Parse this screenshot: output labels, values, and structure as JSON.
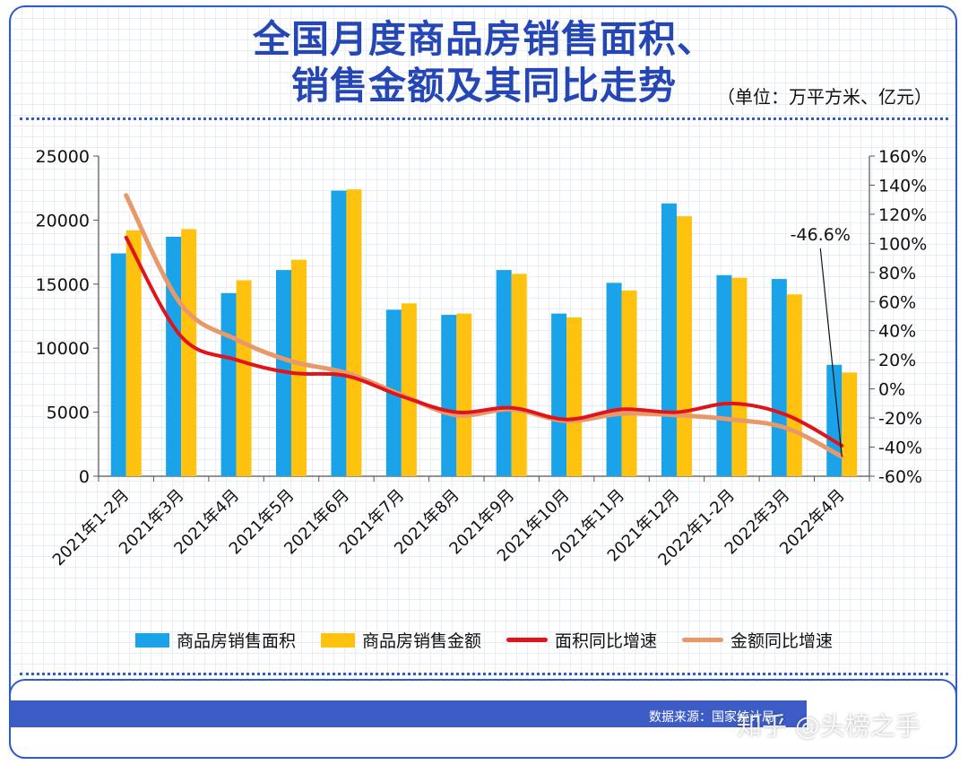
{
  "header": {
    "title_line1": "全国月度商品房销售面积、",
    "title_line2": "销售金额及其同比走势",
    "unit": "（单位：万平方米、亿元）"
  },
  "footer": {
    "source": "数据来源：国家统计局",
    "watermark": "知乎 @头榜之手"
  },
  "colors": {
    "area_bar": "#1aa3e8",
    "amount_bar": "#ffc20e",
    "area_yoy": "#e0141b",
    "amount_yoy": "#e8996a",
    "accent": "#2547b5"
  },
  "chart_data": {
    "type": "bar",
    "categories": [
      "2021年1-2月",
      "2021年3月",
      "2021年4月",
      "2021年5月",
      "2021年6月",
      "2021年7月",
      "2021年8月",
      "2021年9月",
      "2021年10月",
      "2021年11月",
      "2021年12月",
      "2022年1-2月",
      "2022年3月",
      "2022年4月"
    ],
    "series": [
      {
        "name": "商品房销售面积",
        "kind": "bar",
        "axis": "left",
        "values": [
          17400,
          18700,
          14300,
          16100,
          22300,
          13000,
          12600,
          16100,
          12700,
          15100,
          21300,
          15700,
          15400,
          8700
        ]
      },
      {
        "name": "商品房销售金额",
        "kind": "bar",
        "axis": "left",
        "values": [
          19200,
          19300,
          15300,
          16900,
          22400,
          13500,
          12700,
          15800,
          12400,
          14500,
          20300,
          15500,
          14200,
          8100
        ]
      },
      {
        "name": "面积同比增速",
        "kind": "line",
        "axis": "right",
        "values": [
          104,
          36,
          20,
          11,
          9,
          -5,
          -16,
          -13,
          -21,
          -14,
          -16,
          -10,
          -18,
          -39
        ]
      },
      {
        "name": "金额同比增速",
        "kind": "line",
        "axis": "right",
        "values": [
          133,
          58,
          34,
          19,
          11,
          -4,
          -18,
          -14,
          -22,
          -17,
          -18,
          -21,
          -27,
          -46.6
        ]
      }
    ],
    "ylim_left": [
      0,
      25000
    ],
    "yticks_left": [
      "0",
      "5000",
      "10000",
      "15000",
      "20000",
      "25000"
    ],
    "ylim_right": [
      -60,
      160
    ],
    "yticks_right": [
      "-60%",
      "-40%",
      "-20%",
      "0%",
      "20%",
      "40%",
      "60%",
      "80%",
      "100%",
      "120%",
      "140%",
      "160%"
    ],
    "annotation": {
      "text": "-46.6%",
      "series": "金额同比增速",
      "index": 13
    },
    "grid": true,
    "legend": "bottom"
  }
}
